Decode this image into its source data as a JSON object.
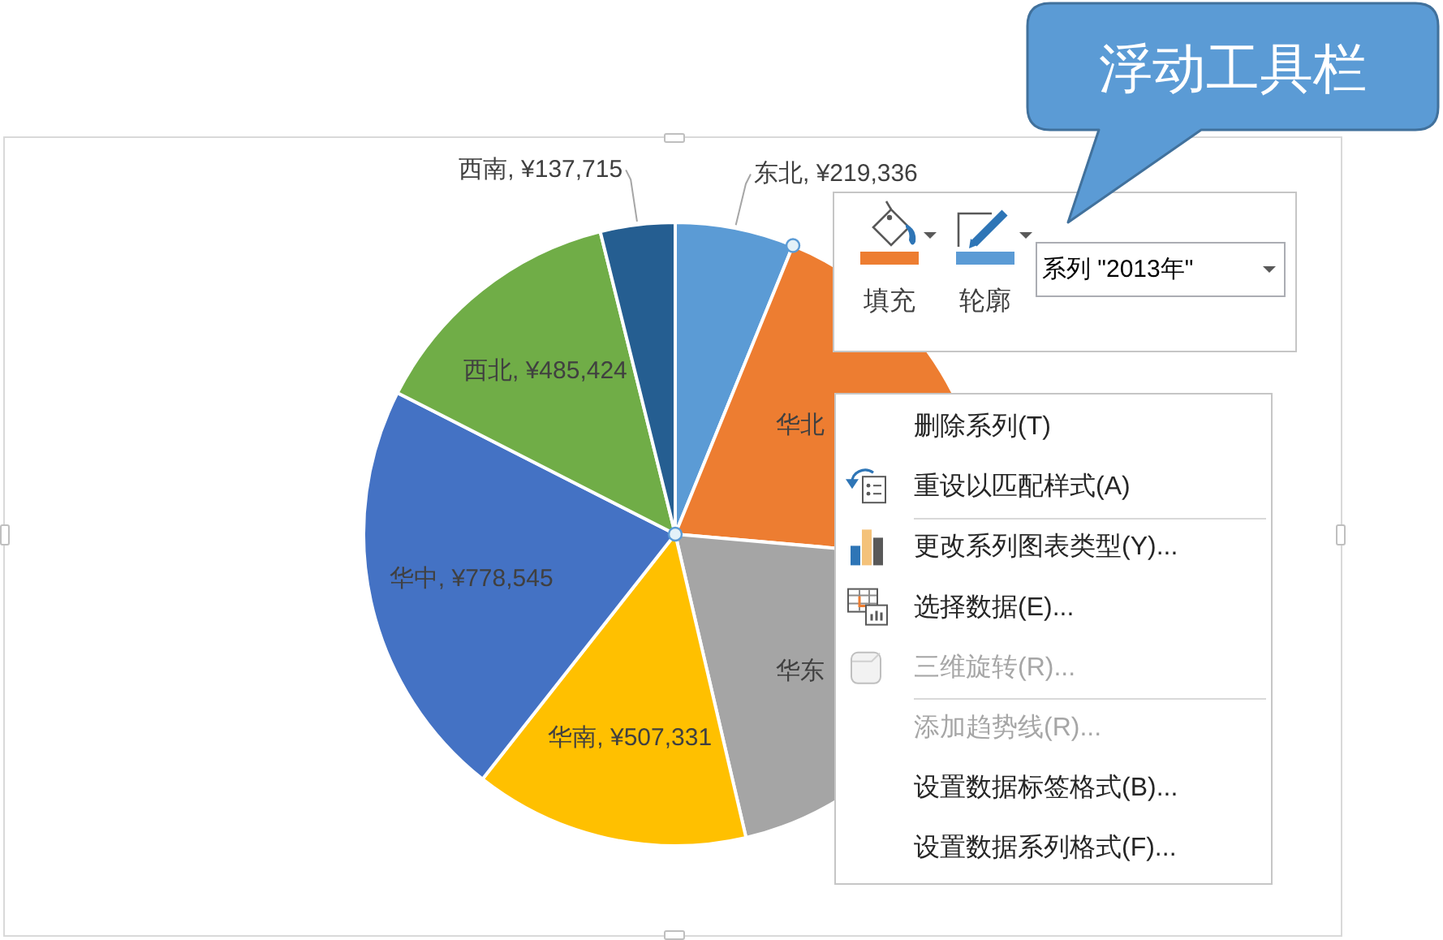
{
  "chart_data": {
    "type": "pie",
    "categories": [
      "东北",
      "华北",
      "华东",
      "华南",
      "华中",
      "西北",
      "西南"
    ],
    "values": [
      219336,
      720000,
      710000,
      507331,
      778545,
      485424,
      137715
    ],
    "colors": [
      "#5b9bd5",
      "#ed7d31",
      "#a5a5a5",
      "#ffc000",
      "#4472c4",
      "#70ad47",
      "#255e91"
    ],
    "value_labels": [
      "¥219,336",
      null,
      null,
      "¥507,331",
      "¥778,545",
      "¥485,424",
      "¥137,715"
    ],
    "annotations": [
      "浮动工具栏",
      "填充",
      "轮廓",
      "系列 \"2013年\"",
      "删除系列(T)",
      "重设以匹配样式(A)",
      "更改系列图表类型(Y)...",
      "选择数据(E)...",
      "三维旋转(R)...",
      "添加趋势线(R)...",
      "设置数据标签格式(B)...",
      "设置数据系列格式(F)..."
    ]
  }
}
